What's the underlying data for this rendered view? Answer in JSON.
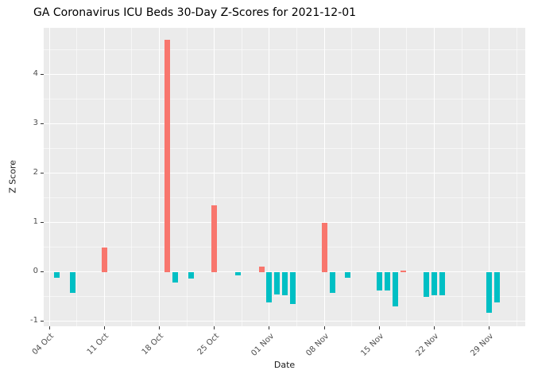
{
  "title": "GA Coronavirus ICU Beds 30-Day Z-Scores for 2021-12-01",
  "chart_data": {
    "type": "bar",
    "title": "GA Coronavirus ICU Beds 30-Day Z-Scores for 2021-12-01",
    "xlabel": "Date",
    "ylabel": "Z Score",
    "x_tick_labels": [
      "04 Oct",
      "11 Oct",
      "18 Oct",
      "25 Oct",
      "01 Nov",
      "08 Nov",
      "15 Nov",
      "22 Nov",
      "29 Nov"
    ],
    "x_tick_days": [
      0,
      7,
      14,
      21,
      28,
      35,
      42,
      49,
      56
    ],
    "y_ticks": [
      -1,
      0,
      1,
      2,
      3,
      4
    ],
    "ylim": [
      -1.1,
      4.95
    ],
    "grid": "major-and-minor-white-on-gray",
    "legend": "none",
    "colors": {
      "positive": "#F8766D",
      "negative": "#00BFC4",
      "panel_bg": "#EBEBEB",
      "grid": "#FFFFFF",
      "axis_text": "#4D4D4D",
      "tick_mark": "#333333"
    },
    "points": [
      {
        "date": "2021-10-05",
        "day": 1,
        "value": -0.12
      },
      {
        "date": "2021-10-07",
        "day": 3,
        "value": -0.42
      },
      {
        "date": "2021-10-11",
        "day": 7,
        "value": 0.5
      },
      {
        "date": "2021-10-19",
        "day": 15,
        "value": 4.7
      },
      {
        "date": "2021-10-20",
        "day": 16,
        "value": -0.22
      },
      {
        "date": "2021-10-22",
        "day": 18,
        "value": -0.13
      },
      {
        "date": "2021-10-25",
        "day": 21,
        "value": 1.35
      },
      {
        "date": "2021-10-28",
        "day": 24,
        "value": -0.06
      },
      {
        "date": "2021-10-31",
        "day": 27,
        "value": 0.11
      },
      {
        "date": "2021-11-01",
        "day": 28,
        "value": -0.62
      },
      {
        "date": "2021-11-02",
        "day": 29,
        "value": -0.45
      },
      {
        "date": "2021-11-03",
        "day": 30,
        "value": -0.47
      },
      {
        "date": "2021-11-04",
        "day": 31,
        "value": -0.65
      },
      {
        "date": "2021-11-08",
        "day": 35,
        "value": 1.0
      },
      {
        "date": "2021-11-09",
        "day": 36,
        "value": -0.42
      },
      {
        "date": "2021-11-11",
        "day": 38,
        "value": -0.12
      },
      {
        "date": "2021-11-15",
        "day": 42,
        "value": -0.38
      },
      {
        "date": "2021-11-16",
        "day": 43,
        "value": -0.38
      },
      {
        "date": "2021-11-17",
        "day": 44,
        "value": -0.7
      },
      {
        "date": "2021-11-18",
        "day": 45,
        "value": 0.03
      },
      {
        "date": "2021-11-21",
        "day": 48,
        "value": -0.5
      },
      {
        "date": "2021-11-22",
        "day": 49,
        "value": -0.47
      },
      {
        "date": "2021-11-23",
        "day": 50,
        "value": -0.47
      },
      {
        "date": "2021-11-29",
        "day": 56,
        "value": -0.82
      },
      {
        "date": "2021-11-30",
        "day": 57,
        "value": -0.62
      }
    ]
  }
}
